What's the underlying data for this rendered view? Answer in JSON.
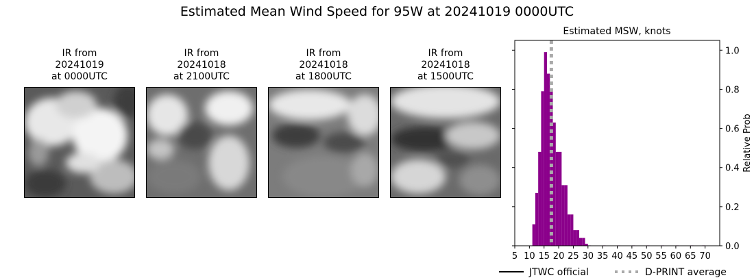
{
  "title": "Estimated Mean Wind Speed for 95W at 20241019 0000UTC",
  "ir_panels": [
    {
      "line1": "IR from",
      "line2": "20241019",
      "line3": "at 0000UTC"
    },
    {
      "line1": "IR from",
      "line2": "20241018",
      "line3": "at 2100UTC"
    },
    {
      "line1": "IR from",
      "line2": "20241018",
      "line3": "at 1800UTC"
    },
    {
      "line1": "IR from",
      "line2": "20241018",
      "line3": "at 1500UTC"
    }
  ],
  "chart_data": {
    "type": "bar",
    "title": "Estimated MSW, knots",
    "xlabel": "",
    "ylabel": "Relative Prob",
    "xlim": [
      5,
      75
    ],
    "ylim": [
      0,
      1.05
    ],
    "xticks": [
      5,
      10,
      15,
      20,
      25,
      30,
      35,
      40,
      45,
      50,
      55,
      60,
      65,
      70
    ],
    "yticks": [
      0.0,
      0.2,
      0.4,
      0.6,
      0.8,
      1.0
    ],
    "ytick_labels": [
      "0.0",
      "0.2",
      "0.4",
      "0.6",
      "0.8",
      "1.0"
    ],
    "bin_width": 1,
    "bins": [
      {
        "x": 11,
        "value": 0.11
      },
      {
        "x": 12,
        "value": 0.27
      },
      {
        "x": 13,
        "value": 0.48
      },
      {
        "x": 14,
        "value": 0.79
      },
      {
        "x": 15,
        "value": 0.99
      },
      {
        "x": 16,
        "value": 0.88
      },
      {
        "x": 17,
        "value": 0.79
      },
      {
        "x": 18,
        "value": 0.63
      },
      {
        "x": 19,
        "value": 0.48
      },
      {
        "x": 20,
        "value": 0.48
      },
      {
        "x": 21,
        "value": 0.31
      },
      {
        "x": 22,
        "value": 0.31
      },
      {
        "x": 23,
        "value": 0.16
      },
      {
        "x": 24,
        "value": 0.16
      },
      {
        "x": 25,
        "value": 0.08
      },
      {
        "x": 26,
        "value": 0.08
      },
      {
        "x": 27,
        "value": 0.04
      },
      {
        "x": 28,
        "value": 0.04
      },
      {
        "x": 29,
        "value": 0.01
      },
      {
        "x": 30,
        "value": 0.002
      },
      {
        "x": 35,
        "value": 0.002
      },
      {
        "x": 40,
        "value": 0.002
      },
      {
        "x": 45,
        "value": 0.002
      },
      {
        "x": 50,
        "value": 0.002
      },
      {
        "x": 55,
        "value": 0.002
      },
      {
        "x": 60,
        "value": 0.002
      },
      {
        "x": 65,
        "value": 0.002
      },
      {
        "x": 69,
        "value": 0.002
      }
    ],
    "bar_color": "#8b008b",
    "dprint_average": 17.5,
    "dprint_color": "#aaaaaa",
    "legend": [
      {
        "label": "JTWC official",
        "style": "solid",
        "color": "#000000"
      },
      {
        "label": "D-PRINT average",
        "style": "dotted",
        "color": "#aaaaaa"
      }
    ],
    "legend_position": "bottom"
  }
}
